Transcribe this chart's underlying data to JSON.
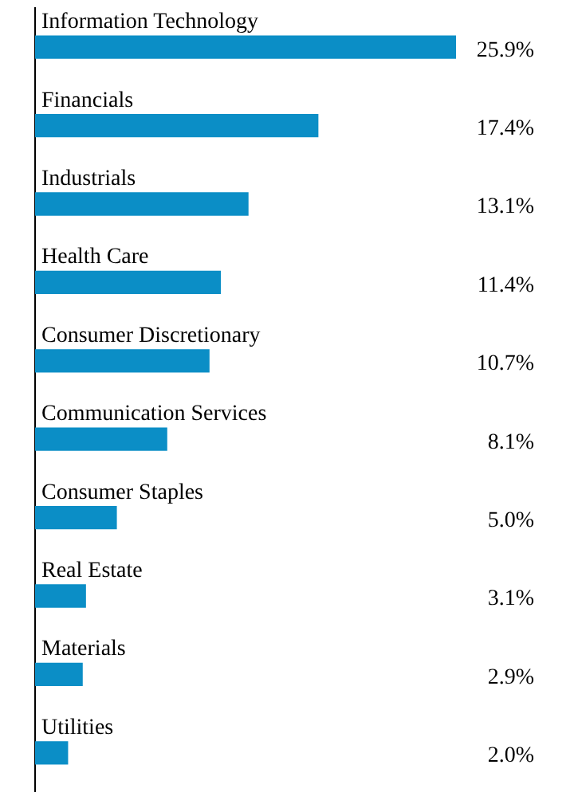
{
  "chart_data": {
    "type": "bar",
    "orientation": "horizontal",
    "categories": [
      "Information Technology",
      "Financials",
      "Industrials",
      "Health Care",
      "Consumer Discretionary",
      "Communication Services",
      "Consumer Staples",
      "Real Estate",
      "Materials",
      "Utilities"
    ],
    "values": [
      25.9,
      17.4,
      13.1,
      11.4,
      10.7,
      8.1,
      5.0,
      3.1,
      2.9,
      2.0
    ],
    "value_labels": [
      "25.9%",
      "17.4%",
      "13.1%",
      "11.4%",
      "10.7%",
      "8.1%",
      "5.0%",
      "3.1%",
      "2.9%",
      "2.0%"
    ],
    "color": "#0b8ec6",
    "grid": false,
    "legend": false
  }
}
